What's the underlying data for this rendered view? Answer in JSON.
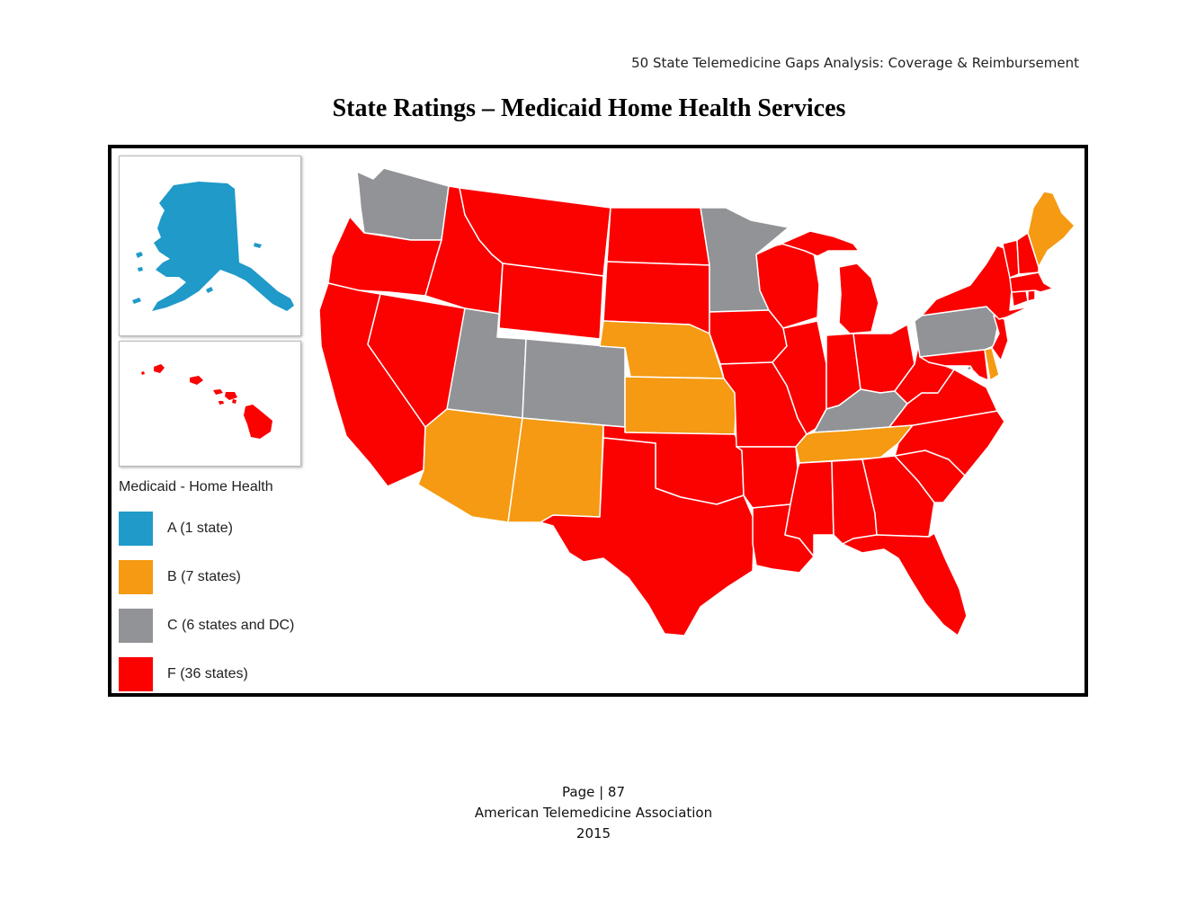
{
  "header": {
    "running_title": "50 State Telemedicine Gaps Analysis:  Coverage & Reimbursement"
  },
  "title": "State Ratings – Medicaid Home Health Services",
  "legend": {
    "title": "Medicaid - Home Health",
    "items": [
      {
        "grade": "A",
        "label": "A (1 state)",
        "color": "#1f9ac9"
      },
      {
        "grade": "B",
        "label": "B (7 states)",
        "color": "#f59a12"
      },
      {
        "grade": "C",
        "label": "C (6 states and DC)",
        "color": "#919396"
      },
      {
        "grade": "F",
        "label": "F (36 states)",
        "color": "#fb0100"
      }
    ]
  },
  "map": {
    "ratings": {
      "AK": "A",
      "ME": "B",
      "NE": "B",
      "KS": "B",
      "AZ": "B",
      "NM": "B",
      "TN": "B",
      "DE": "B",
      "WA": "C",
      "MN": "C",
      "UT": "C",
      "CO": "C",
      "PA": "C",
      "KY": "C",
      "DC": "C",
      "OR": "F",
      "ID": "F",
      "MT": "F",
      "WY": "F",
      "ND": "F",
      "SD": "F",
      "CA": "F",
      "NV": "F",
      "TX": "F",
      "OK": "F",
      "IA": "F",
      "MO": "F",
      "AR": "F",
      "LA": "F",
      "WI": "F",
      "IL": "F",
      "MI": "F",
      "IN": "F",
      "OH": "F",
      "MS": "F",
      "AL": "F",
      "GA": "F",
      "FL": "F",
      "SC": "F",
      "NC": "F",
      "VA": "F",
      "WV": "F",
      "MD": "F",
      "NJ": "F",
      "NY": "F",
      "CT": "F",
      "RI": "F",
      "MA": "F",
      "VT": "F",
      "NH": "F",
      "HI": "F"
    }
  },
  "footer": {
    "page": "Page | 87",
    "org": "American Telemedicine Association",
    "year": "2015"
  }
}
